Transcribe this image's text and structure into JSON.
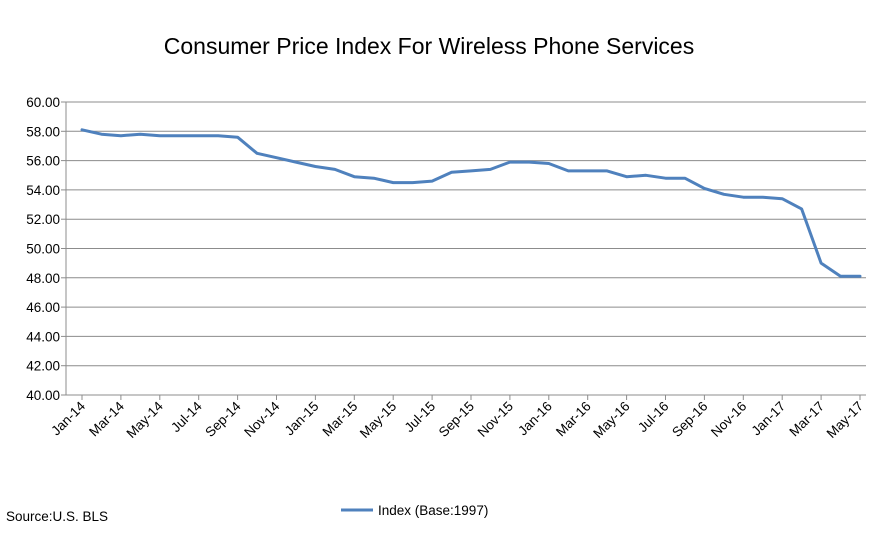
{
  "chart_data": {
    "type": "line",
    "title": "Consumer Price Index For Wireless Phone Services",
    "xlabel": "",
    "ylabel": "",
    "ylim": [
      40,
      60
    ],
    "yticks": [
      "40.00",
      "42.00",
      "44.00",
      "46.00",
      "48.00",
      "50.00",
      "52.00",
      "54.00",
      "56.00",
      "58.00",
      "60.00"
    ],
    "x": [
      "Jan-14",
      "Feb-14",
      "Mar-14",
      "Apr-14",
      "May-14",
      "Jun-14",
      "Jul-14",
      "Aug-14",
      "Sep-14",
      "Oct-14",
      "Nov-14",
      "Dec-14",
      "Jan-15",
      "Feb-15",
      "Mar-15",
      "Apr-15",
      "May-15",
      "Jun-15",
      "Jul-15",
      "Aug-15",
      "Sep-15",
      "Oct-15",
      "Nov-15",
      "Dec-15",
      "Jan-16",
      "Feb-16",
      "Mar-16",
      "Apr-16",
      "May-16",
      "Jun-16",
      "Jul-16",
      "Aug-16",
      "Sep-16",
      "Oct-16",
      "Nov-16",
      "Dec-16",
      "Jan-17",
      "Feb-17",
      "Mar-17",
      "Apr-17",
      "May-17"
    ],
    "x_tick_labels": [
      "Jan-14",
      "Mar-14",
      "May-14",
      "Jul-14",
      "Sep-14",
      "Nov-14",
      "Jan-15",
      "Mar-15",
      "May-15",
      "Jul-15",
      "Sep-15",
      "Nov-15",
      "Jan-16",
      "Mar-16",
      "May-16",
      "Jul-16",
      "Sep-16",
      "Nov-16",
      "Jan-17",
      "Mar-17",
      "May-17"
    ],
    "series": [
      {
        "name": "Index (Base:1997)",
        "color": "#4f81bd",
        "values": [
          58.1,
          57.8,
          57.7,
          57.8,
          57.7,
          57.7,
          57.7,
          57.7,
          57.6,
          56.5,
          56.2,
          55.9,
          55.6,
          55.4,
          54.9,
          54.8,
          54.5,
          54.5,
          54.6,
          55.2,
          55.3,
          55.4,
          55.9,
          55.9,
          55.8,
          55.3,
          55.3,
          55.3,
          54.9,
          55.0,
          54.8,
          54.8,
          54.1,
          53.7,
          53.5,
          53.5,
          53.4,
          52.7,
          49.0,
          48.1,
          48.1
        ]
      }
    ],
    "grid": true,
    "legend_position": "bottom"
  },
  "source": "Source:U.S. BLS"
}
